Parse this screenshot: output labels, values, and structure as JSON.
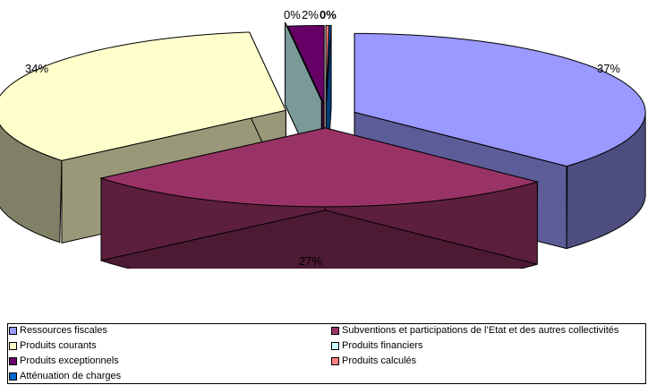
{
  "chart_data": {
    "type": "pie",
    "variant": "3d-exploded",
    "title": "",
    "categories": [
      "Ressources fiscales",
      "Subventions et participations de l'Etat et des autres collectivités",
      "Produits courants",
      "Produits financiers",
      "Produits exceptionnels",
      "Produits calculés",
      "Atténuation de charges"
    ],
    "values": [
      37,
      27,
      34,
      0,
      2,
      0,
      0
    ],
    "data_labels": [
      "37%",
      "27%",
      "34%",
      "",
      "",
      "",
      ""
    ],
    "top_labels": [
      {
        "text": "0%",
        "bold": false
      },
      {
        "text": "2%",
        "bold": false
      },
      {
        "text": "0%",
        "bold": true
      }
    ],
    "colors": [
      "#9999FF",
      "#993366",
      "#FFFFCC",
      "#CCFFFF",
      "#660066",
      "#FF8080",
      "#0066CC"
    ],
    "legend_position": "bottom"
  },
  "legend": {
    "items": [
      {
        "label": "Ressources fiscales",
        "color": "#9999FF"
      },
      {
        "label": "Subventions et participations de l’Etat et des autres collectivités",
        "color": "#993366"
      },
      {
        "label": "Produits courants",
        "color": "#FFFFCC"
      },
      {
        "label": "Produits financiers",
        "color": "#CCFFFF"
      },
      {
        "label": "Produits exceptionnels",
        "color": "#660066"
      },
      {
        "label": "Produits calculés",
        "color": "#FF8080"
      },
      {
        "label": "Atténuation de charges",
        "color": "#0066CC"
      }
    ]
  }
}
